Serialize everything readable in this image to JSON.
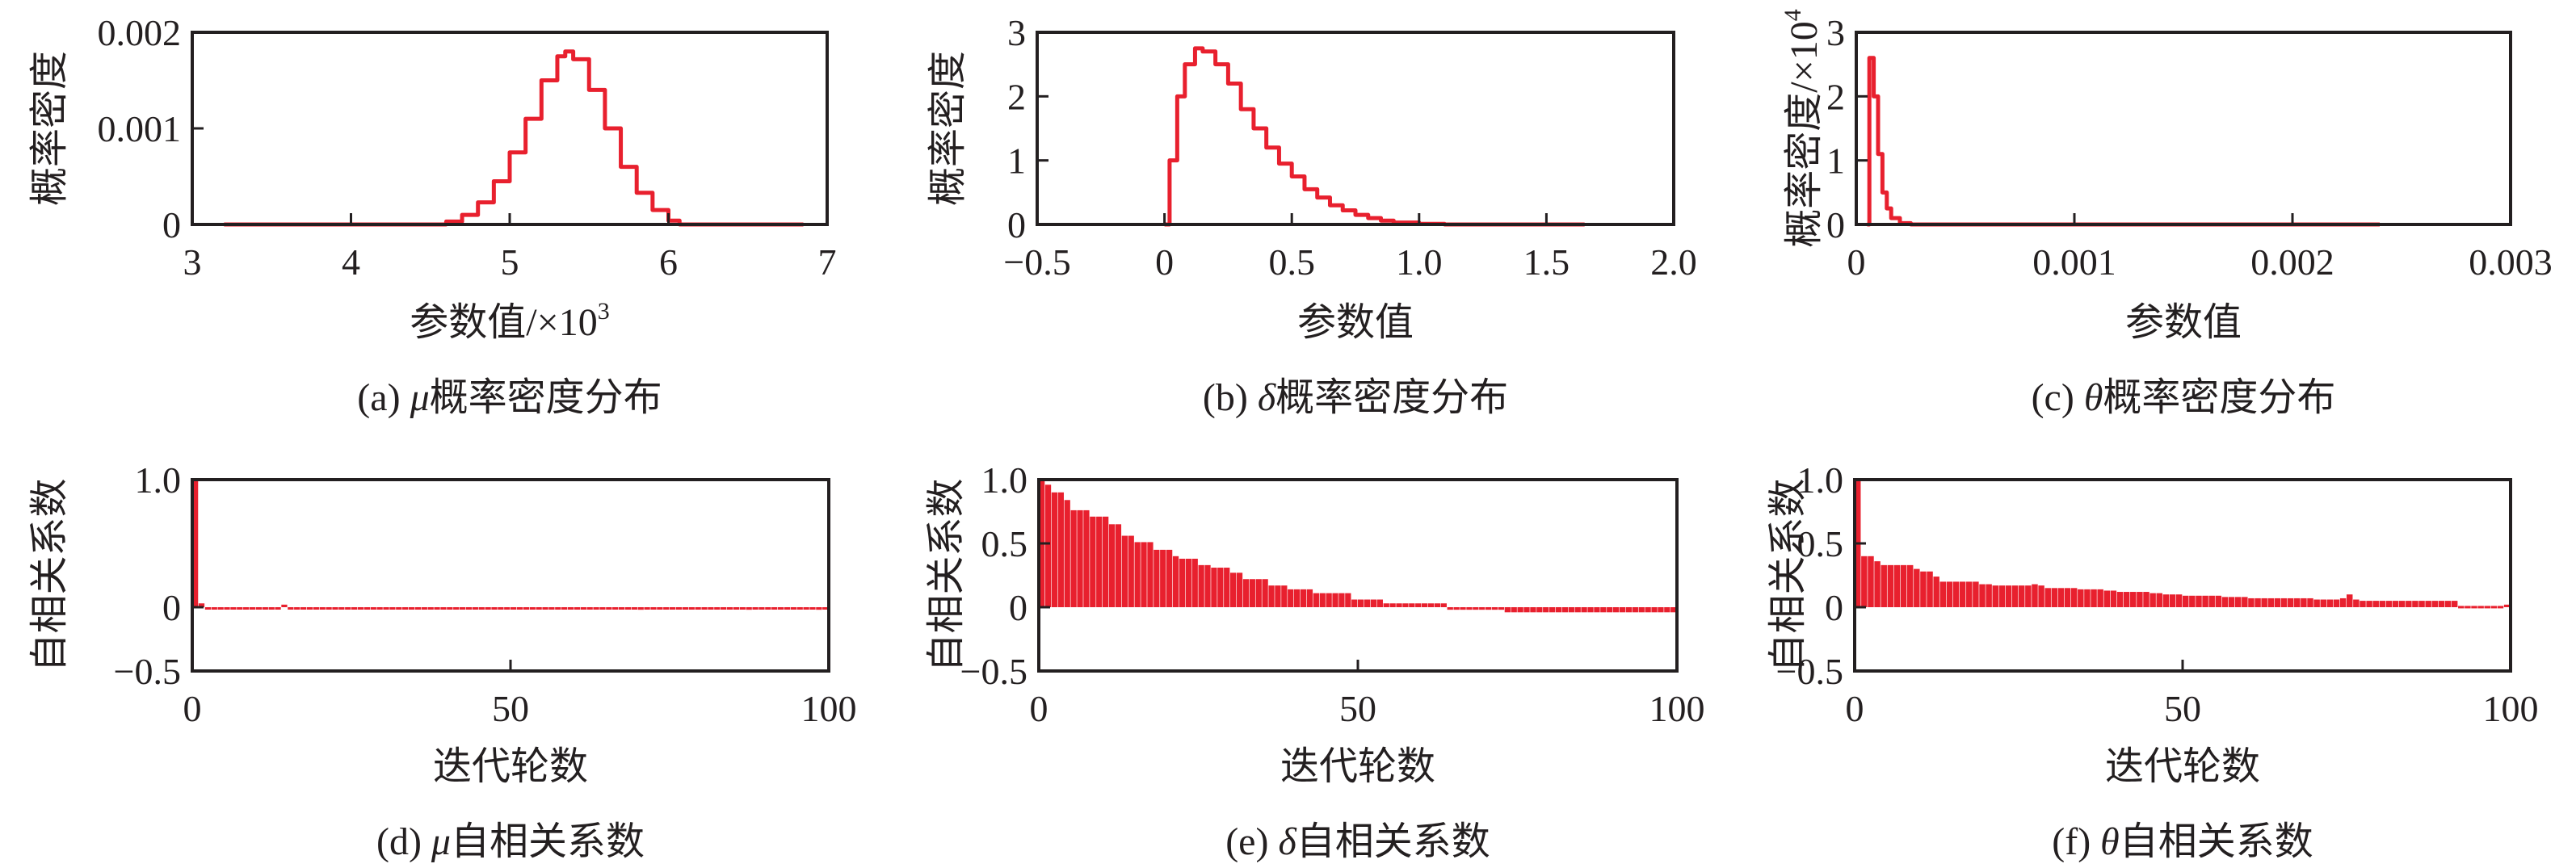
{
  "colors": {
    "series": "#e8202e",
    "axis": "#231f20"
  },
  "chart_data": [
    {
      "id": "a",
      "type": "line",
      "style": "step",
      "caption": {
        "prefix": "(a) ",
        "symbol": "μ",
        "suffix": "概率密度分布"
      },
      "xlabel": "参数值/×10",
      "xlabel_sup": "3",
      "ylabel": "概率密度",
      "ylabel_sup": "",
      "xlim": [
        3,
        7
      ],
      "ylim": [
        0,
        0.002
      ],
      "xticks": [
        3,
        4,
        5,
        6,
        7
      ],
      "xtick_labels": [
        "3",
        "4",
        "5",
        "6",
        "7"
      ],
      "yticks": [
        0,
        0.001,
        0.002
      ],
      "ytick_labels": [
        "0",
        "0.001",
        "0.002"
      ],
      "x": [
        3.2,
        4.55,
        4.6,
        4.7,
        4.8,
        4.9,
        5.0,
        5.1,
        5.2,
        5.3,
        5.35,
        5.4,
        5.5,
        5.6,
        5.7,
        5.8,
        5.9,
        6.0,
        6.07,
        6.85
      ],
      "y": [
        0,
        0,
        3e-05,
        0.0001,
        0.00023,
        0.00045,
        0.00075,
        0.0011,
        0.0015,
        0.00175,
        0.0018,
        0.00172,
        0.0014,
        0.001,
        0.0006,
        0.00033,
        0.00015,
        4e-05,
        0,
        0
      ]
    },
    {
      "id": "b",
      "type": "line",
      "style": "step",
      "caption": {
        "prefix": "(b) ",
        "symbol": "δ",
        "suffix": "概率密度分布"
      },
      "xlabel": "参数值",
      "xlabel_sup": "",
      "ylabel": "概率密度",
      "ylabel_sup": "",
      "xlim": [
        -0.5,
        2.0
      ],
      "ylim": [
        0,
        3
      ],
      "xticks": [
        -0.5,
        0,
        0.5,
        1.0,
        1.5,
        2.0
      ],
      "xtick_labels": [
        "−0.5",
        "0",
        "0.5",
        "1.0",
        "1.5",
        "2.0"
      ],
      "yticks": [
        0,
        1,
        2,
        3
      ],
      "ytick_labels": [
        "0",
        "1",
        "2",
        "3"
      ],
      "x": [
        0,
        0.02,
        0.05,
        0.08,
        0.12,
        0.15,
        0.2,
        0.25,
        0.3,
        0.35,
        0.4,
        0.45,
        0.5,
        0.55,
        0.6,
        0.65,
        0.7,
        0.75,
        0.8,
        0.85,
        0.9,
        1.0,
        1.1,
        1.65
      ],
      "y": [
        0,
        1.0,
        2.0,
        2.5,
        2.75,
        2.7,
        2.5,
        2.2,
        1.8,
        1.5,
        1.2,
        0.95,
        0.75,
        0.55,
        0.42,
        0.3,
        0.22,
        0.15,
        0.1,
        0.06,
        0.03,
        0.01,
        0,
        0
      ]
    },
    {
      "id": "c",
      "type": "line",
      "style": "step",
      "caption": {
        "prefix": "(c) ",
        "symbol": "θ",
        "suffix": "概率密度分布"
      },
      "xlabel": "参数值",
      "xlabel_sup": "",
      "ylabel": "概率密度/×10",
      "ylabel_sup": "4",
      "xlim": [
        0,
        0.003
      ],
      "ylim": [
        0,
        3
      ],
      "xticks": [
        0,
        0.001,
        0.002,
        0.003
      ],
      "xtick_labels": [
        "0",
        "0.001",
        "0.002",
        "0.003"
      ],
      "yticks": [
        0,
        1,
        2,
        3
      ],
      "ytick_labels": [
        "0",
        "1",
        "2",
        "3"
      ],
      "x": [
        5e-05,
        6e-05,
        8e-05,
        0.0001,
        0.00012,
        0.00014,
        0.00016,
        0.0002,
        0.00025,
        0.0024
      ],
      "y": [
        0,
        2.6,
        2.0,
        1.1,
        0.5,
        0.25,
        0.1,
        0.02,
        0,
        0
      ]
    },
    {
      "id": "d",
      "type": "bar",
      "caption": {
        "prefix": "(d) ",
        "symbol": "μ",
        "suffix": "自相关系数"
      },
      "xlabel": "迭代轮数",
      "xlabel_sup": "",
      "ylabel": "自相关系数",
      "ylabel_sup": "",
      "xlim": [
        0,
        100
      ],
      "ylim": [
        -0.5,
        1.0
      ],
      "xticks": [
        0,
        50,
        100
      ],
      "xtick_labels": [
        "0",
        "50",
        "100"
      ],
      "yticks": [
        -0.5,
        0,
        1.0
      ],
      "ytick_labels": [
        "−0.5",
        "0",
        "1.0"
      ],
      "values": [
        1.0,
        0.03,
        0.0,
        -0.01,
        0.0,
        0.0,
        -0.01,
        0.0,
        0.0,
        0.0,
        -0.01,
        0.0,
        0.0,
        0.0,
        0.02,
        0.0,
        -0.01,
        0.0,
        0.0,
        0.0,
        0.0,
        -0.01,
        0.0,
        0.0,
        0.0,
        0.0,
        0.0,
        -0.01,
        0.0,
        0.0,
        0.0,
        0.0,
        0.0,
        0.0,
        -0.01,
        0.0,
        0.0,
        0.0,
        0.0,
        0.0,
        0.0,
        0.0,
        -0.01,
        0.0,
        0.0,
        0.0,
        0.0,
        0.0,
        0.0,
        0.0,
        0.0,
        -0.01,
        0.0,
        0.0,
        0.0,
        0.0,
        0.0,
        0.0,
        0.0,
        0.0,
        0.0,
        -0.01,
        0.0,
        0.0,
        0.0,
        0.0,
        0.0,
        0.0,
        0.0,
        0.0,
        -0.02,
        0.0,
        0.0,
        0.0,
        0.0,
        0.0,
        0.0,
        0.0,
        0.0,
        0.0,
        -0.01,
        0.0,
        0.0,
        0.0,
        0.0,
        0.0,
        0.0,
        -0.02,
        0.0,
        0.0,
        0.0,
        0.0,
        0.0,
        0.0,
        0.0,
        0.0,
        0.0,
        0.0,
        -0.02,
        0.0
      ]
    },
    {
      "id": "e",
      "type": "bar",
      "caption": {
        "prefix": "(e) ",
        "symbol": "δ",
        "suffix": "自相关系数"
      },
      "xlabel": "迭代轮数",
      "xlabel_sup": "",
      "ylabel": "自相关系数",
      "ylabel_sup": "",
      "xlim": [
        0,
        100
      ],
      "ylim": [
        -0.5,
        1.0
      ],
      "xticks": [
        0,
        50,
        100
      ],
      "xtick_labels": [
        "0",
        "50",
        "100"
      ],
      "yticks": [
        -0.5,
        0,
        0.5,
        1.0
      ],
      "ytick_labels": [
        "−0.5",
        "0",
        "0.5",
        "1.0"
      ],
      "values": [
        1.0,
        0.96,
        0.9,
        0.9,
        0.84,
        0.76,
        0.76,
        0.76,
        0.71,
        0.71,
        0.71,
        0.65,
        0.65,
        0.56,
        0.56,
        0.51,
        0.51,
        0.51,
        0.45,
        0.45,
        0.45,
        0.4,
        0.38,
        0.38,
        0.38,
        0.33,
        0.33,
        0.31,
        0.31,
        0.31,
        0.27,
        0.27,
        0.22,
        0.22,
        0.22,
        0.22,
        0.17,
        0.17,
        0.17,
        0.14,
        0.14,
        0.14,
        0.14,
        0.11,
        0.11,
        0.11,
        0.11,
        0.11,
        0.11,
        0.06,
        0.06,
        0.06,
        0.06,
        0.06,
        0.03,
        0.03,
        0.03,
        0.03,
        0.03,
        0.03,
        0.03,
        0.03,
        0.03,
        0.03,
        -0.02,
        -0.02,
        -0.02,
        -0.02,
        -0.02,
        -0.02,
        -0.02,
        -0.02,
        -0.02,
        -0.04,
        -0.04,
        -0.04,
        -0.04,
        -0.04,
        -0.04,
        -0.04,
        -0.04,
        -0.04,
        -0.04,
        -0.04,
        -0.04,
        -0.04,
        -0.04,
        -0.04,
        -0.04,
        -0.04,
        -0.04,
        -0.04,
        -0.04,
        -0.04,
        -0.04,
        -0.04,
        -0.04,
        -0.04,
        -0.04,
        -0.04
      ]
    },
    {
      "id": "f",
      "type": "bar",
      "caption": {
        "prefix": "(f) ",
        "symbol": "θ",
        "suffix": "自相关系数"
      },
      "xlabel": "迭代轮数",
      "xlabel_sup": "",
      "ylabel": "自相关系数",
      "ylabel_sup": "",
      "xlim": [
        0,
        100
      ],
      "ylim": [
        -0.5,
        1.0
      ],
      "xticks": [
        0,
        50,
        100
      ],
      "xtick_labels": [
        "0",
        "50",
        "100"
      ],
      "yticks": [
        -0.5,
        0,
        0.5,
        1.0
      ],
      "ytick_labels": [
        "−0.5",
        "0",
        "0.5",
        "1.0"
      ],
      "values": [
        1.0,
        0.4,
        0.4,
        0.36,
        0.33,
        0.33,
        0.33,
        0.33,
        0.33,
        0.3,
        0.28,
        0.28,
        0.24,
        0.2,
        0.2,
        0.2,
        0.2,
        0.2,
        0.2,
        0.18,
        0.18,
        0.17,
        0.17,
        0.17,
        0.17,
        0.17,
        0.17,
        0.18,
        0.17,
        0.15,
        0.15,
        0.15,
        0.15,
        0.15,
        0.14,
        0.14,
        0.14,
        0.14,
        0.13,
        0.13,
        0.12,
        0.12,
        0.12,
        0.12,
        0.12,
        0.11,
        0.11,
        0.1,
        0.1,
        0.1,
        0.09,
        0.09,
        0.09,
        0.09,
        0.09,
        0.09,
        0.08,
        0.08,
        0.08,
        0.08,
        0.07,
        0.07,
        0.07,
        0.07,
        0.07,
        0.07,
        0.07,
        0.07,
        0.07,
        0.07,
        0.06,
        0.06,
        0.06,
        0.06,
        0.07,
        0.1,
        0.06,
        0.05,
        0.05,
        0.05,
        0.05,
        0.05,
        0.05,
        0.05,
        0.05,
        0.05,
        0.05,
        0.05,
        0.05,
        0.05,
        0.05,
        0.05,
        0.01,
        0.01,
        0.01,
        0.01,
        0.01,
        0.01,
        0.01,
        0.02
      ]
    }
  ]
}
